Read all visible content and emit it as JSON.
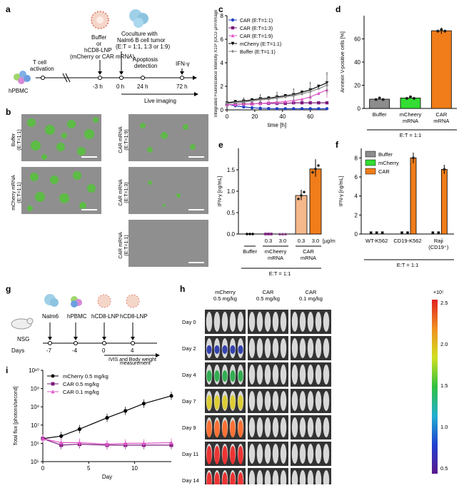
{
  "panels": {
    "a": "a",
    "b": "b",
    "c": "c",
    "d": "d",
    "e": "e",
    "f": "f",
    "g": "g",
    "h": "h",
    "i": "i"
  },
  "panel_a": {
    "hpbmc": "hPBMC",
    "t_activation_1": "T cell",
    "t_activation_2": "activation",
    "buffer_1": "Buffer",
    "buffer_2": "or",
    "buffer_3": "hCD8-LNP",
    "buffer_4": "(mCherry or CAR mRNA)",
    "cocult_1": "Coculture with",
    "cocult_2": "Nalm6 B cell tumor",
    "cocult_3": "(E:T = 1:1, 1:3 or 1:9)",
    "apoptosis_1": "Apoptosis",
    "apoptosis_2": "detection",
    "ifn": "IFN-γ",
    "t_m3": "-3 h",
    "t_0": "0 h",
    "t_24": "24 h",
    "t_72": "72 h",
    "live": "Live imaging"
  },
  "panel_b": {
    "labels": [
      {
        "l1": "Buffer",
        "l2": "(E:T=1:1)"
      },
      {
        "l1": "mCherry mRNA",
        "l2": "(E:T=1:1)"
      },
      {
        "l1": "CAR mRNA",
        "l2": "(E:T=1:9)"
      },
      {
        "l1": "CAR mRNA",
        "l2": "(E:T=1:3)"
      },
      {
        "l1": "CAR mRNA",
        "l2": "(E:T=1:1)"
      }
    ]
  },
  "panel_g": {
    "nsg": "NSG",
    "days": "Days",
    "events": [
      {
        "name": "Nalm6",
        "day": "-7"
      },
      {
        "name": "hPBMC",
        "day": "-4"
      },
      {
        "name": "hCD8-LNP",
        "day": "0"
      },
      {
        "name": "hCD8-LNP",
        "day": "4"
      }
    ],
    "ivis_1": "IVIS and Body weight",
    "ivis_2": "measurement"
  },
  "panel_h": {
    "groups": [
      {
        "l1": "mCherry",
        "l2": "0.5 mg/kg"
      },
      {
        "l1": "CAR",
        "l2": "0.5 mg/kg"
      },
      {
        "l1": "CAR",
        "l2": "0.1 mg/kg"
      }
    ],
    "days": [
      "Day 0",
      "Day 2",
      "Day 4",
      "Day 7",
      "Day 9",
      "Day 11",
      "Day 14"
    ],
    "colorbar_ticks": [
      "2.5",
      "2.0",
      "1.5",
      "1.0",
      "0.5"
    ],
    "colorbar_exp": "×10⁵",
    "signal": [
      [
        0,
        0,
        0
      ],
      [
        1,
        0,
        0
      ],
      [
        2,
        0,
        0
      ],
      [
        3,
        0,
        0
      ],
      [
        4,
        0,
        0
      ],
      [
        5,
        0,
        0
      ],
      [
        5,
        0,
        0
      ]
    ]
  },
  "chart_data": [
    {
      "id": "c",
      "type": "line",
      "title": "",
      "xlabel": "time [h]",
      "ylabel": "Integrated Fluorescence Intensity X10³ [GCU·µm²/Image]",
      "xlim": [
        0,
        72
      ],
      "ylim": [
        0,
        8
      ],
      "xticks": [
        "0",
        "20",
        "40",
        "60"
      ],
      "yticks": [
        "0",
        "2",
        "4",
        "6",
        "8"
      ],
      "x": [
        0,
        6,
        12,
        18,
        24,
        30,
        36,
        42,
        48,
        54,
        60,
        66,
        72
      ],
      "series": [
        {
          "name": "CAR (E:T=1:1)",
          "color": "#1f3fbf",
          "marker": "circle",
          "values": [
            0.5,
            0.35,
            0.25,
            0.18,
            0.14,
            0.12,
            0.1,
            0.1,
            0.1,
            0.1,
            0.1,
            0.1,
            0.1
          ]
        },
        {
          "name": "CAR (E:T=1:3)",
          "color": "#7b1a7b",
          "marker": "square",
          "values": [
            0.45,
            0.45,
            0.5,
            0.5,
            0.55,
            0.55,
            0.55,
            0.55,
            0.6,
            0.6,
            0.6,
            0.6,
            0.6
          ]
        },
        {
          "name": "CAR (E:T=1:9)",
          "color": "#e056c8",
          "marker": "triangle",
          "values": [
            0.45,
            0.45,
            0.5,
            0.5,
            0.55,
            0.6,
            0.65,
            0.7,
            0.8,
            0.9,
            1.1,
            1.4,
            1.7
          ]
        },
        {
          "name": "mCherry (E:T=1:1)",
          "color": "#000000",
          "marker": "triangle-down",
          "values": [
            0.6,
            0.7,
            0.75,
            0.85,
            0.95,
            1.0,
            1.1,
            1.2,
            1.3,
            1.5,
            1.7,
            2.0,
            2.3
          ]
        },
        {
          "name": "Buffer (E:T=1:1)",
          "color": "#888888",
          "marker": "diamond",
          "values": [
            0.55,
            0.6,
            0.65,
            0.75,
            0.85,
            0.9,
            1.0,
            1.1,
            1.2,
            1.35,
            1.55,
            1.8,
            2.1
          ]
        }
      ]
    },
    {
      "id": "d",
      "type": "bar",
      "ylabel": "Annexin V-positive cells [%]",
      "ylim": [
        0,
        80
      ],
      "yticks": [
        "0",
        "20",
        "40",
        "60"
      ],
      "categories": [
        "Buffer",
        "mCheery mRNA",
        "CAR mRNA"
      ],
      "values": [
        8,
        9,
        67
      ],
      "colors": [
        "#8c8c8c",
        "#33dd33",
        "#f07d1a"
      ],
      "footer": "E:T = 1:1"
    },
    {
      "id": "e",
      "type": "bar",
      "ylabel": "IFN-γ [ng/mL]",
      "ylim": [
        0,
        2.0
      ],
      "yticks": [
        "0.0",
        "0.5",
        "1.0",
        "1.5"
      ],
      "groups": [
        {
          "name": "Buffer",
          "doses": [
            ""
          ],
          "values": [
            0
          ],
          "colors": [
            "#000000"
          ]
        },
        {
          "name": "mCheery mRNA",
          "doses": [
            "0.3",
            "3.0"
          ],
          "values": [
            0,
            0
          ],
          "colors": [
            "#7b1a7b",
            "#7b1a7b"
          ]
        },
        {
          "name": "CAR mRNA",
          "doses": [
            "0.3",
            "3.0"
          ],
          "values": [
            0.9,
            1.52
          ],
          "colors": [
            "#f5b88a",
            "#f07d1a"
          ]
        }
      ],
      "unit": "[µg/mL]",
      "footer": "E:T = 1:1"
    },
    {
      "id": "f",
      "type": "bar",
      "ylabel": "IFN-γ [ng/mL]",
      "ylim": [
        0,
        9
      ],
      "yticks": [
        "0",
        "2",
        "4",
        "6",
        "8"
      ],
      "categories": [
        "WT-K562",
        "CD19-K562",
        "Raji (CD19⁺)"
      ],
      "series": [
        {
          "name": "Buffer",
          "color": "#8c8c8c",
          "values": [
            0,
            0,
            0
          ]
        },
        {
          "name": "mCherry",
          "color": "#33dd33",
          "values": [
            0,
            0,
            0
          ]
        },
        {
          "name": "CAR",
          "color": "#f07d1a",
          "values": [
            0,
            8.0,
            6.8
          ]
        }
      ],
      "footer": "E:T = 1:1"
    },
    {
      "id": "i",
      "type": "line",
      "xlabel": "Day",
      "ylabel": "Total flux [photons/second]",
      "xlim": [
        0,
        14
      ],
      "yscale": "log",
      "ylim": [
        100000.0,
        10000000000.0
      ],
      "xticks": [
        "0",
        "5",
        "10"
      ],
      "yticks": [
        "10⁵",
        "10⁶",
        "10⁷",
        "10⁸",
        "10⁹",
        "10¹⁰"
      ],
      "x": [
        0,
        2,
        4,
        7,
        9,
        11,
        14
      ],
      "series": [
        {
          "name": "mCherry 0.5 mg/kg",
          "color": "#000000",
          "marker": "circle",
          "values": [
            1800000.0,
            2500000.0,
            6000000.0,
            25000000.0,
            60000000.0,
            150000000.0,
            400000000.0
          ]
        },
        {
          "name": "CAR 0.5 mg/kg",
          "color": "#7b1a7b",
          "marker": "square",
          "values": [
            1800000.0,
            800000.0,
            900000.0,
            800000.0,
            800000.0,
            800000.0,
            800000.0
          ]
        },
        {
          "name": "CAR 0.1 mg/kg",
          "color": "#e056c8",
          "marker": "triangle",
          "values": [
            1800000.0,
            1100000.0,
            1100000.0,
            900000.0,
            1000000.0,
            1000000.0,
            1100000.0
          ]
        }
      ]
    }
  ]
}
